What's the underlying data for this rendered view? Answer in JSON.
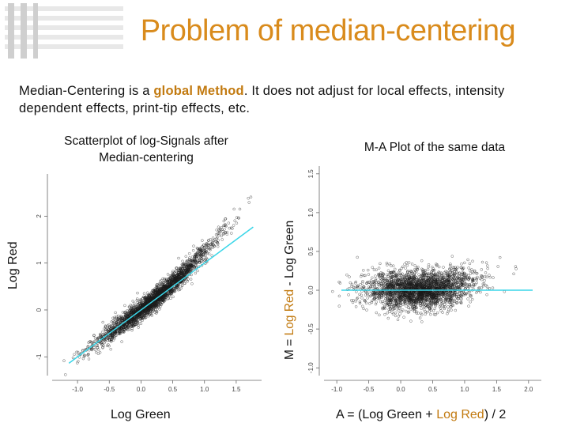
{
  "title": "Problem of median-centering",
  "intro": {
    "part1": "Median-Centering is a ",
    "highlight": "global Method",
    "part2": ". It does not adjust for local effects, intensity dependent effects, print-tip effects, etc."
  },
  "colors": {
    "accent": "#d98b1c",
    "fit_line": "#3ad6e8",
    "points": "#1a1a1a"
  },
  "chart_data": [
    {
      "type": "scatter",
      "title": "Scatterplot of log-Signals after Median-centering",
      "xlabel": "Log Green",
      "ylabel": "Log Red",
      "xlim": [
        -1.4,
        1.9
      ],
      "ylim": [
        -1.4,
        2.9
      ],
      "xticks": [
        "-1.0",
        "-0.5",
        "0.0",
        "0.5",
        "1.0",
        "1.5"
      ],
      "yticks": [
        "-1",
        "0",
        "1",
        "2"
      ],
      "reference_line": {
        "slope": 1,
        "intercept": 0
      },
      "trend": "points curve upward above the identity line at high intensities"
    },
    {
      "type": "scatter",
      "title": "M-A Plot of the same data",
      "xlabel_parts": [
        "A = ",
        "(Log Green + ",
        "Log Red",
        ") / 2"
      ],
      "ylabel_parts": [
        "M = ",
        "Log Red",
        " - Log Green"
      ],
      "xlim": [
        -1.2,
        2.2
      ],
      "ylim": [
        -1.1,
        1.6
      ],
      "xticks": [
        "-1.0",
        "-0.5",
        "0.0",
        "0.5",
        "1.0",
        "1.5",
        "2.0"
      ],
      "yticks": [
        "-1.0",
        "-0.5",
        "0.0",
        "0.5",
        "1.0",
        "1.5"
      ],
      "reference_line": {
        "slope": 0,
        "intercept": 0
      },
      "trend": "M rises with A above about 0.5"
    }
  ]
}
